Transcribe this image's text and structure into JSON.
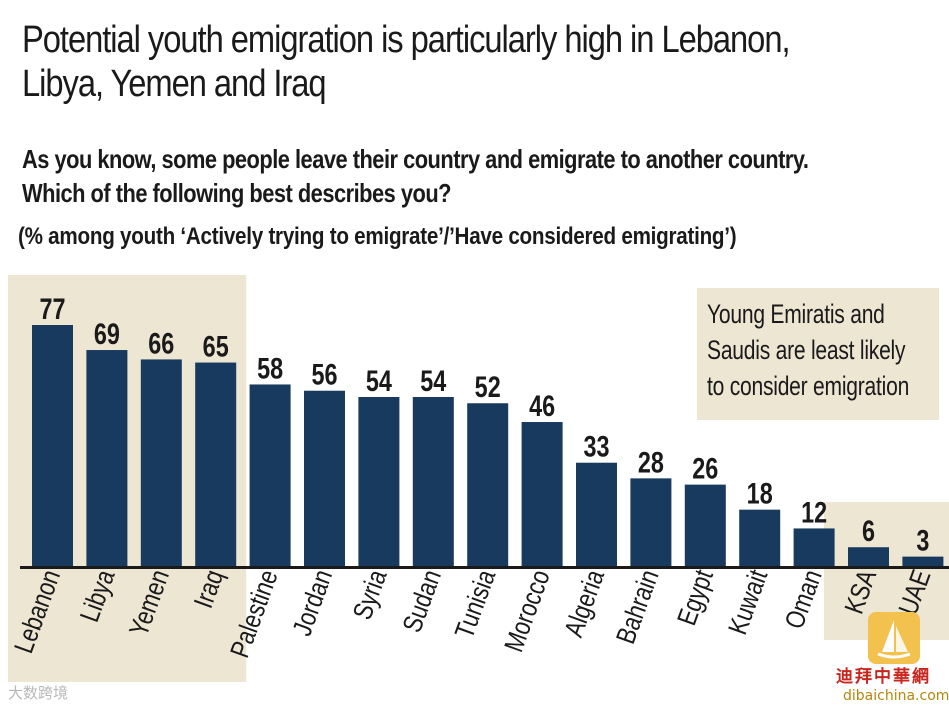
{
  "title_line1": "Potential youth emigration is particularly high in Lebanon,",
  "title_line2": "Libya, Yemen and Iraq",
  "question_line1": "As you know, some people leave their country and emigrate to another country.",
  "question_line2": "Which of the following best describes you?",
  "subquestion": "(% among youth ‘Actively trying to emigrate’/’Have considered emigrating’)",
  "note": {
    "line1": "Young Emiratis and",
    "line2": "Saudis are least likely",
    "line3": "to consider emigration"
  },
  "watermark": {
    "left": "大数跨境",
    "cn": "迪拜中華網",
    "url": "dibaichina.com"
  },
  "colors": {
    "bar": "#173a5e",
    "highlight": "#ede6d3",
    "text": "#1a1a1a"
  },
  "chart_data": {
    "type": "bar",
    "categories": [
      "Lebanon",
      "Libya",
      "Yemen",
      "Iraq",
      "Palestine",
      "Jordan",
      "Syria",
      "Sudan",
      "Tunisia",
      "Morocco",
      "Algeria",
      "Bahrain",
      "Egypt",
      "Kuwait",
      "Oman",
      "KSA",
      "UAE"
    ],
    "values": [
      77,
      69,
      66,
      65,
      58,
      56,
      54,
      54,
      52,
      46,
      33,
      28,
      26,
      18,
      12,
      6,
      3
    ],
    "ylim": [
      0,
      80
    ],
    "highlighted_groups": [
      [
        "Lebanon",
        "Libya",
        "Yemen",
        "Iraq"
      ],
      [
        "KSA",
        "UAE"
      ]
    ],
    "title": "Potential youth emigration is particularly high in Lebanon, Libya, Yemen and Iraq",
    "xlabel": "",
    "ylabel": ""
  }
}
